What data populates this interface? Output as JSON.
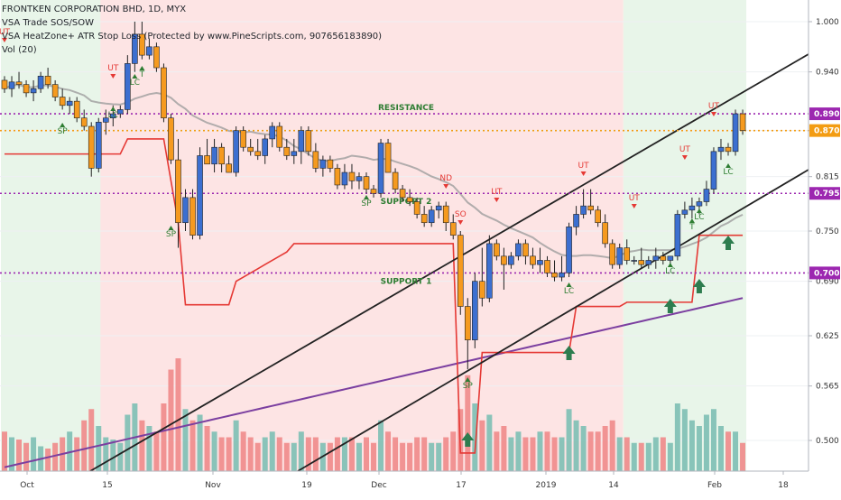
{
  "legend": {
    "title": "FRONTKEN CORPORATION BHD, 1D, MYX",
    "line2": "VSA Trade SOS/SOW",
    "line3": "VSA HeatZone+ ATR Stop Loss (Protected by www.PineScripts.com, 907656183890)",
    "line4": "Vol (20)"
  },
  "chart_data": {
    "type": "candlestick",
    "title": "FRONTKEN CORPORATION BHD, 1D, MYX",
    "y_ticks": [
      "1.000",
      "0.940",
      "0.870",
      "0.815",
      "0.750",
      "0.690",
      "0.625",
      "0.565",
      "0.500"
    ],
    "x_ticks": [
      "Oct",
      "15",
      "Nov",
      "19",
      "Dec",
      "17",
      "2019",
      "14",
      "Feb",
      "18"
    ],
    "price_levels": [
      {
        "label": "0.890",
        "value": 0.89,
        "color": "#9c27b0"
      },
      {
        "label": "0.870",
        "value": 0.87,
        "color": "#f39c12"
      },
      {
        "label": "0.795",
        "value": 0.795,
        "color": "#9c27b0"
      },
      {
        "label": "0.700",
        "value": 0.7,
        "color": "#9c27b0"
      }
    ],
    "zone_labels": [
      "RESISTANCE",
      "SUPPORT 2",
      "SUPPORT 1"
    ],
    "signal_labels": [
      "UT",
      "SP",
      "UT",
      "LC",
      "T",
      "LC",
      "SP",
      "SP",
      "ND",
      "SO",
      "UT",
      "SP",
      "UT",
      "LC",
      "UT",
      "LC",
      "UT",
      "T",
      "LC",
      "UT",
      "LC"
    ],
    "candles": [
      [
        0.93,
        0.935,
        0.915,
        0.92
      ],
      [
        0.92,
        0.935,
        0.91,
        0.928
      ],
      [
        0.928,
        0.94,
        0.92,
        0.925
      ],
      [
        0.925,
        0.93,
        0.91,
        0.915
      ],
      [
        0.915,
        0.93,
        0.905,
        0.92
      ],
      [
        0.92,
        0.94,
        0.915,
        0.935
      ],
      [
        0.935,
        0.945,
        0.92,
        0.925
      ],
      [
        0.925,
        0.93,
        0.905,
        0.91
      ],
      [
        0.91,
        0.92,
        0.895,
        0.9
      ],
      [
        0.9,
        0.91,
        0.89,
        0.905
      ],
      [
        0.905,
        0.91,
        0.88,
        0.885
      ],
      [
        0.885,
        0.895,
        0.87,
        0.875
      ],
      [
        0.875,
        0.88,
        0.815,
        0.825
      ],
      [
        0.825,
        0.885,
        0.82,
        0.88
      ],
      [
        0.88,
        0.895,
        0.865,
        0.885
      ],
      [
        0.885,
        0.9,
        0.875,
        0.89
      ],
      [
        0.89,
        0.9,
        0.885,
        0.895
      ],
      [
        0.895,
        0.96,
        0.89,
        0.95
      ],
      [
        0.95,
        1.0,
        0.94,
        0.985
      ],
      [
        0.985,
        1.0,
        0.955,
        0.96
      ],
      [
        0.96,
        0.98,
        0.955,
        0.97
      ],
      [
        0.97,
        0.975,
        0.94,
        0.945
      ],
      [
        0.945,
        0.95,
        0.88,
        0.885
      ],
      [
        0.885,
        0.89,
        0.83,
        0.835
      ],
      [
        0.835,
        0.86,
        0.73,
        0.76
      ],
      [
        0.76,
        0.8,
        0.75,
        0.79
      ],
      [
        0.79,
        0.8,
        0.74,
        0.745
      ],
      [
        0.745,
        0.85,
        0.74,
        0.84
      ],
      [
        0.84,
        0.86,
        0.83,
        0.83
      ],
      [
        0.83,
        0.86,
        0.82,
        0.85
      ],
      [
        0.85,
        0.855,
        0.82,
        0.83
      ],
      [
        0.83,
        0.84,
        0.82,
        0.82
      ],
      [
        0.82,
        0.875,
        0.815,
        0.87
      ],
      [
        0.87,
        0.875,
        0.845,
        0.85
      ],
      [
        0.85,
        0.86,
        0.84,
        0.845
      ],
      [
        0.845,
        0.86,
        0.835,
        0.84
      ],
      [
        0.84,
        0.865,
        0.83,
        0.86
      ],
      [
        0.86,
        0.88,
        0.85,
        0.875
      ],
      [
        0.875,
        0.88,
        0.845,
        0.85
      ],
      [
        0.85,
        0.86,
        0.835,
        0.84
      ],
      [
        0.84,
        0.86,
        0.83,
        0.845
      ],
      [
        0.845,
        0.875,
        0.83,
        0.87
      ],
      [
        0.87,
        0.875,
        0.84,
        0.845
      ],
      [
        0.845,
        0.855,
        0.82,
        0.825
      ],
      [
        0.825,
        0.84,
        0.815,
        0.835
      ],
      [
        0.835,
        0.84,
        0.82,
        0.825
      ],
      [
        0.825,
        0.83,
        0.8,
        0.805
      ],
      [
        0.805,
        0.83,
        0.8,
        0.82
      ],
      [
        0.82,
        0.83,
        0.8,
        0.81
      ],
      [
        0.81,
        0.82,
        0.8,
        0.815
      ],
      [
        0.815,
        0.82,
        0.795,
        0.8
      ],
      [
        0.8,
        0.805,
        0.79,
        0.795
      ],
      [
        0.795,
        0.86,
        0.79,
        0.855
      ],
      [
        0.855,
        0.86,
        0.82,
        0.82
      ],
      [
        0.82,
        0.825,
        0.795,
        0.8
      ],
      [
        0.8,
        0.805,
        0.785,
        0.79
      ],
      [
        0.79,
        0.8,
        0.78,
        0.785
      ],
      [
        0.785,
        0.79,
        0.765,
        0.77
      ],
      [
        0.77,
        0.78,
        0.755,
        0.76
      ],
      [
        0.76,
        0.78,
        0.755,
        0.775
      ],
      [
        0.775,
        0.785,
        0.765,
        0.78
      ],
      [
        0.78,
        0.785,
        0.75,
        0.76
      ],
      [
        0.76,
        0.77,
        0.74,
        0.745
      ],
      [
        0.745,
        0.75,
        0.65,
        0.66
      ],
      [
        0.66,
        0.67,
        0.585,
        0.62
      ],
      [
        0.62,
        0.7,
        0.61,
        0.69
      ],
      [
        0.69,
        0.73,
        0.66,
        0.67
      ],
      [
        0.67,
        0.745,
        0.665,
        0.735
      ],
      [
        0.735,
        0.74,
        0.715,
        0.72
      ],
      [
        0.72,
        0.73,
        0.68,
        0.71
      ],
      [
        0.71,
        0.725,
        0.705,
        0.72
      ],
      [
        0.72,
        0.74,
        0.715,
        0.735
      ],
      [
        0.735,
        0.74,
        0.71,
        0.72
      ],
      [
        0.72,
        0.73,
        0.705,
        0.71
      ],
      [
        0.71,
        0.73,
        0.7,
        0.715
      ],
      [
        0.715,
        0.72,
        0.695,
        0.7
      ],
      [
        0.7,
        0.715,
        0.69,
        0.695
      ],
      [
        0.695,
        0.72,
        0.69,
        0.7
      ],
      [
        0.7,
        0.76,
        0.695,
        0.755
      ],
      [
        0.755,
        0.78,
        0.745,
        0.77
      ],
      [
        0.77,
        0.8,
        0.765,
        0.78
      ],
      [
        0.78,
        0.8,
        0.77,
        0.775
      ],
      [
        0.775,
        0.78,
        0.755,
        0.76
      ],
      [
        0.76,
        0.77,
        0.73,
        0.735
      ],
      [
        0.735,
        0.74,
        0.705,
        0.71
      ],
      [
        0.71,
        0.735,
        0.705,
        0.73
      ],
      [
        0.73,
        0.74,
        0.71,
        0.715
      ],
      [
        0.715,
        0.72,
        0.71,
        0.715
      ],
      [
        0.715,
        0.73,
        0.705,
        0.71
      ],
      [
        0.71,
        0.72,
        0.705,
        0.715
      ],
      [
        0.715,
        0.73,
        0.705,
        0.72
      ],
      [
        0.72,
        0.725,
        0.71,
        0.715
      ],
      [
        0.715,
        0.72,
        0.71,
        0.72
      ],
      [
        0.72,
        0.775,
        0.715,
        0.77
      ],
      [
        0.77,
        0.785,
        0.765,
        0.775
      ],
      [
        0.775,
        0.79,
        0.765,
        0.78
      ],
      [
        0.78,
        0.79,
        0.77,
        0.785
      ],
      [
        0.785,
        0.81,
        0.78,
        0.8
      ],
      [
        0.8,
        0.85,
        0.795,
        0.845
      ],
      [
        0.845,
        0.86,
        0.835,
        0.85
      ],
      [
        0.85,
        0.855,
        0.84,
        0.845
      ],
      [
        0.845,
        0.895,
        0.84,
        0.89
      ],
      [
        0.89,
        0.895,
        0.865,
        0.87
      ]
    ],
    "volume": [
      0.35,
      0.3,
      0.28,
      0.25,
      0.3,
      0.22,
      0.2,
      0.25,
      0.3,
      0.35,
      0.3,
      0.45,
      0.55,
      0.4,
      0.3,
      0.28,
      0.25,
      0.5,
      0.6,
      0.45,
      0.4,
      0.35,
      0.6,
      0.9,
      1.0,
      0.55,
      0.45,
      0.5,
      0.4,
      0.35,
      0.3,
      0.3,
      0.45,
      0.35,
      0.3,
      0.25,
      0.3,
      0.35,
      0.3,
      0.25,
      0.25,
      0.35,
      0.3,
      0.3,
      0.25,
      0.25,
      0.3,
      0.3,
      0.3,
      0.25,
      0.3,
      0.25,
      0.45,
      0.35,
      0.3,
      0.25,
      0.25,
      0.3,
      0.3,
      0.25,
      0.25,
      0.3,
      0.35,
      0.55,
      0.85,
      0.6,
      0.45,
      0.5,
      0.35,
      0.4,
      0.3,
      0.35,
      0.3,
      0.3,
      0.35,
      0.35,
      0.3,
      0.3,
      0.55,
      0.45,
      0.4,
      0.35,
      0.35,
      0.4,
      0.45,
      0.3,
      0.3,
      0.25,
      0.25,
      0.25,
      0.3,
      0.3,
      0.25,
      0.6,
      0.55,
      0.45,
      0.4,
      0.5,
      0.55,
      0.4,
      0.35,
      0.35,
      0.25
    ],
    "green_zone_1": {
      "from_index": 0,
      "to_index": 15
    },
    "red_zone": {
      "from_index": 16,
      "to_index": 85
    },
    "green_zone_2": {
      "from_index": 86,
      "to_index": 102
    }
  }
}
